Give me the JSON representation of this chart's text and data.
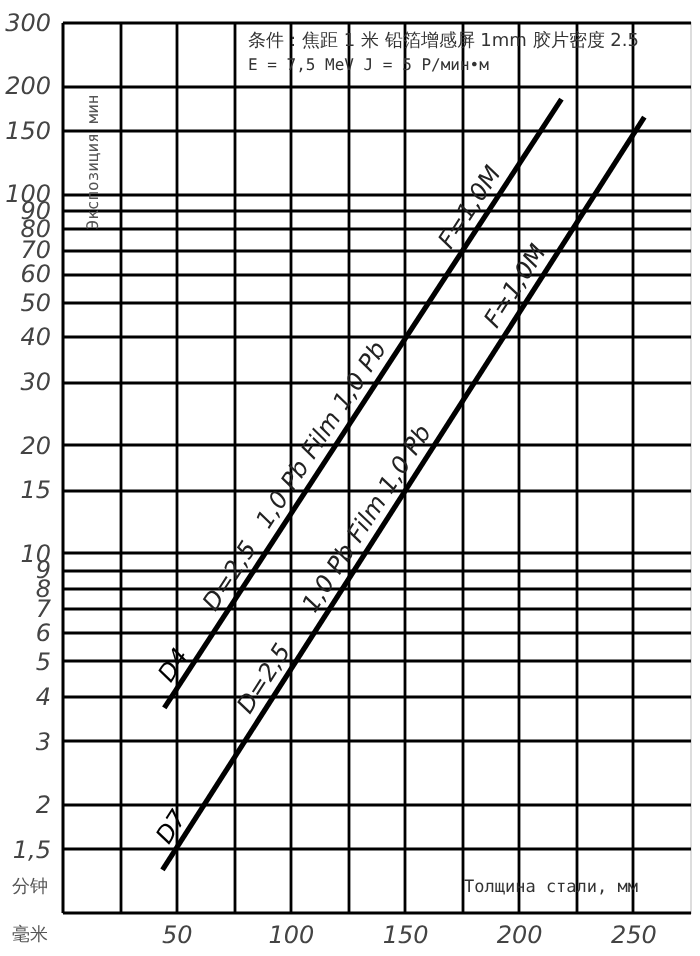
{
  "chart_data": {
    "type": "line",
    "title": "条件：焦距 1 米  铅箔增感屏 1mm  胶片密度 2.5",
    "subtitle": "E = 7,5 MeV    J = 5 P/мин•м",
    "xlabel": "Толщина стали, мм",
    "ylabel": "Экспозиция мин",
    "annotations": [
      "分钟",
      "毫米",
      {
        "text": "D=2,5",
        "x": 80,
        "y": 8.1
      },
      {
        "text": "1,0 Pb Film 1,0 Pb",
        "x": 120,
        "y": 20
      },
      {
        "text": "F=1,0M",
        "x": 185,
        "y": 86
      },
      {
        "text": "D=2,5",
        "x": 95,
        "y": 4.2
      },
      {
        "text": "1,0 Pb Film 1,0 Pb",
        "x": 140,
        "y": 11.7
      },
      {
        "text": "F=1,0M",
        "x": 205,
        "y": 52
      }
    ],
    "series": [
      {
        "name": "D4",
        "color": "#000000",
        "x": [
          44.8,
          218.7
        ],
        "values": [
          3.7,
          183
        ]
      },
      {
        "name": "D7",
        "color": "#000000",
        "x": [
          44,
          255
        ],
        "values": [
          1.31,
          163
        ]
      }
    ],
    "log": "y",
    "xlim": [
      0,
      275
    ],
    "ylim": [
      1,
      300
    ],
    "xticks": [
      {
        "value": 25,
        "label": null
      },
      {
        "value": 50,
        "label": "50"
      },
      {
        "value": 75,
        "label": null
      },
      {
        "value": 100,
        "label": "100"
      },
      {
        "value": 125,
        "label": null
      },
      {
        "value": 150,
        "label": "150"
      },
      {
        "value": 175,
        "label": null
      },
      {
        "value": 200,
        "label": "200"
      },
      {
        "value": 225,
        "label": null
      },
      {
        "value": 250,
        "label": "250"
      }
    ],
    "yticks": [
      {
        "value": 1.5,
        "label": "1,5"
      },
      {
        "value": 2,
        "label": "2"
      },
      {
        "value": 3,
        "label": "3"
      },
      {
        "value": 4,
        "label": "4"
      },
      {
        "value": 5,
        "label": "5"
      },
      {
        "value": 6,
        "label": "6"
      },
      {
        "value": 7,
        "label": "7"
      },
      {
        "value": 8,
        "label": "8"
      },
      {
        "value": 9,
        "label": "9"
      },
      {
        "value": 10,
        "label": "10"
      },
      {
        "value": 15,
        "label": "15"
      },
      {
        "value": 20,
        "label": "20"
      },
      {
        "value": 30,
        "label": "30"
      },
      {
        "value": 40,
        "label": "40"
      },
      {
        "value": 50,
        "label": "50"
      },
      {
        "value": 60,
        "label": "60"
      },
      {
        "value": 70,
        "label": "70"
      },
      {
        "value": 80,
        "label": "80"
      },
      {
        "value": 90,
        "label": "90"
      },
      {
        "value": 100,
        "label": "100"
      },
      {
        "value": 150,
        "label": "150"
      },
      {
        "value": 200,
        "label": "200"
      },
      {
        "value": 300,
        "label": "300"
      }
    ],
    "grid": true,
    "legend": false,
    "marker": "none",
    "line_style": "solid"
  }
}
